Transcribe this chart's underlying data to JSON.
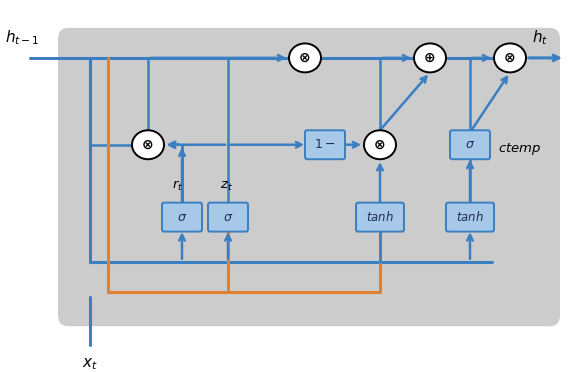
{
  "bg_color": "#cccccc",
  "blue": "#3a7fc1",
  "orange": "#e08030",
  "box_face": "#a8c8e8",
  "box_edge": "#3a7fc1",
  "fig_bg": "#ffffff",
  "h_t1_label": "$h_{t-1}$",
  "h_t_label": "$h_t$",
  "x_t_label": "$x_t$",
  "r_t_label": "$r_t$",
  "z_t_label": "$z_t$",
  "ctemp_label": "$ctemp$",
  "sigma_label": "$\\sigma$",
  "tanh_label": "$tanh$",
  "1minus_label": "$1-$",
  "lw_main": 2.2,
  "lw_arrow": 1.8
}
